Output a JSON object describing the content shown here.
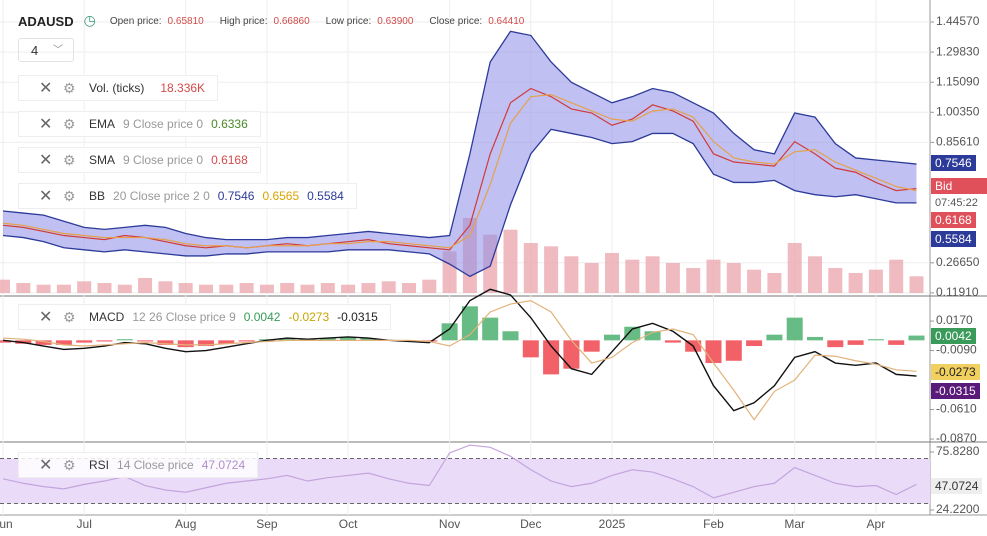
{
  "header": {
    "symbol": "ADAUSD",
    "interval": "4",
    "ohlc": [
      {
        "label": "Open price:",
        "value": "0.65810"
      },
      {
        "label": "High price:",
        "value": "0.66860"
      },
      {
        "label": "Low price:",
        "value": "0.63900"
      },
      {
        "label": "Close price:",
        "value": "0.64410"
      }
    ]
  },
  "indicators": {
    "vol": {
      "value": "18.336K"
    },
    "ema": {
      "params": "9 Close price 0",
      "value": "0.6336"
    },
    "sma": {
      "params": "9 Close price 0",
      "value": "0.6168"
    },
    "bb": {
      "params": "20 Close price 2 0",
      "values": [
        "0.7546",
        "0.6565",
        "0.5584"
      ]
    },
    "macd": {
      "params": "12 26 Close price 9",
      "values": [
        "0.0042",
        "-0.0273",
        "-0.0315"
      ]
    },
    "rsi": {
      "params": "14 Close price",
      "value": "47.0724"
    }
  },
  "price_tags": {
    "bid_label": "Bid",
    "countdown": "07:45:22"
  },
  "chart_data": [
    {
      "type": "line",
      "categories": [
        "Jun",
        null,
        null,
        null,
        "Jul",
        null,
        null,
        null,
        null,
        "Aug",
        null,
        null,
        null,
        "Sep",
        null,
        null,
        null,
        "Oct",
        null,
        null,
        null,
        null,
        "Nov",
        null,
        null,
        null,
        "Dec",
        null,
        null,
        null,
        "2025",
        null,
        null,
        null,
        null,
        "Feb",
        null,
        null,
        null,
        "Mar",
        null,
        null,
        null,
        "Apr",
        null,
        null
      ],
      "ylim": [
        0.1088,
        1.5534
      ],
      "yticks": [
        {
          "value": 1.4457,
          "label": "1.44570"
        },
        {
          "value": 1.2983,
          "label": "1.29830"
        },
        {
          "value": 1.1509,
          "label": "1.15090"
        },
        {
          "value": 1.0035,
          "label": "1.00350"
        },
        {
          "value": 0.8561,
          "label": "0.85610"
        },
        {
          "value": 0.2665,
          "label": "0.26650"
        },
        {
          "value": 0.1191,
          "label": "0.11910"
        }
      ],
      "grid": true,
      "band": {
        "name": "BB",
        "color": "#2c3a99",
        "fill": "#8d8ee8",
        "upper": [
          0.52,
          0.51,
          0.5,
          0.47,
          0.44,
          0.43,
          0.44,
          0.45,
          0.44,
          0.41,
          0.39,
          0.38,
          0.38,
          0.38,
          0.39,
          0.39,
          0.4,
          0.41,
          0.42,
          0.41,
          0.4,
          0.39,
          0.4,
          0.8,
          1.25,
          1.4,
          1.38,
          1.25,
          1.15,
          1.1,
          1.05,
          1.08,
          1.12,
          1.1,
          1.05,
          1.0,
          0.9,
          0.82,
          0.8,
          1.0,
          0.98,
          0.85,
          0.78,
          0.77,
          0.76,
          0.75
        ],
        "lower": [
          0.4,
          0.39,
          0.37,
          0.34,
          0.33,
          0.32,
          0.33,
          0.32,
          0.31,
          0.3,
          0.3,
          0.31,
          0.31,
          0.32,
          0.32,
          0.32,
          0.32,
          0.33,
          0.33,
          0.33,
          0.32,
          0.31,
          0.26,
          0.2,
          0.25,
          0.55,
          0.8,
          0.92,
          0.9,
          0.88,
          0.85,
          0.86,
          0.9,
          0.9,
          0.85,
          0.7,
          0.66,
          0.66,
          0.67,
          0.62,
          0.6,
          0.59,
          0.6,
          0.58,
          0.56,
          0.56
        ]
      },
      "volume": {
        "name": "Vol. (ticks)",
        "color": "#e9a3ab",
        "values": [
          8,
          6,
          5,
          5,
          7,
          6,
          5,
          9,
          7,
          6,
          5,
          5,
          6,
          5,
          6,
          5,
          6,
          5,
          6,
          7,
          6,
          8,
          25,
          45,
          35,
          38,
          30,
          28,
          22,
          18,
          24,
          20,
          22,
          18,
          15,
          20,
          18,
          14,
          12,
          30,
          22,
          15,
          12,
          14,
          20,
          10
        ]
      },
      "series": [
        {
          "name": "EMA",
          "color": "#d23a3a",
          "values": [
            0.45,
            0.44,
            0.42,
            0.4,
            0.39,
            0.38,
            0.4,
            0.39,
            0.37,
            0.35,
            0.34,
            0.35,
            0.34,
            0.35,
            0.36,
            0.35,
            0.36,
            0.37,
            0.38,
            0.36,
            0.35,
            0.34,
            0.33,
            0.45,
            0.8,
            1.05,
            1.12,
            1.08,
            1.02,
            1.0,
            0.94,
            0.97,
            1.04,
            1.01,
            0.96,
            0.8,
            0.76,
            0.75,
            0.74,
            0.86,
            0.8,
            0.73,
            0.71,
            0.66,
            0.62,
            0.63
          ]
        },
        {
          "name": "SMA",
          "color": "#e6a04a",
          "values": [
            0.46,
            0.45,
            0.43,
            0.41,
            0.4,
            0.39,
            0.39,
            0.39,
            0.38,
            0.36,
            0.35,
            0.35,
            0.34,
            0.35,
            0.35,
            0.35,
            0.36,
            0.36,
            0.37,
            0.37,
            0.36,
            0.35,
            0.34,
            0.4,
            0.65,
            0.95,
            1.08,
            1.09,
            1.05,
            1.01,
            0.97,
            0.96,
            1.01,
            1.02,
            0.98,
            0.86,
            0.78,
            0.76,
            0.75,
            0.81,
            0.82,
            0.76,
            0.72,
            0.68,
            0.64,
            0.62
          ]
        }
      ]
    },
    {
      "type": "macd",
      "ylim": [
        -0.0896,
        0.0382
      ],
      "yticks": [
        {
          "value": 0.017,
          "label": "0.0170"
        },
        {
          "value": -0.009,
          "label": "-0.0090"
        },
        {
          "value": -0.061,
          "label": "-0.0610"
        },
        {
          "value": -0.087,
          "label": "-0.0870"
        }
      ],
      "histogram": {
        "name": "MACD",
        "up_color": "#4caf6e",
        "down_color": "#f0444e",
        "values": [
          -0.002,
          -0.003,
          -0.004,
          -0.004,
          -0.002,
          -0.001,
          0.001,
          -0.001,
          -0.004,
          -0.006,
          -0.005,
          -0.003,
          -0.001,
          0.001,
          0.002,
          0.001,
          0.002,
          0.003,
          0.002,
          0.0,
          -0.001,
          -0.001,
          0.015,
          0.03,
          0.02,
          0.008,
          -0.015,
          -0.03,
          -0.025,
          -0.01,
          0.005,
          0.012,
          0.008,
          -0.002,
          -0.01,
          -0.02,
          -0.018,
          -0.005,
          0.005,
          0.02,
          0.003,
          -0.006,
          -0.004,
          0.001,
          -0.004,
          0.0042
        ]
      },
      "series": [
        {
          "color": "#111111",
          "values": [
            0.0,
            -0.002,
            -0.005,
            -0.008,
            -0.007,
            -0.005,
            -0.002,
            -0.003,
            -0.007,
            -0.01,
            -0.009,
            -0.006,
            -0.003,
            0.0,
            0.002,
            0.001,
            0.002,
            0.003,
            0.002,
            0.0,
            -0.001,
            -0.002,
            0.01,
            0.035,
            0.045,
            0.04,
            0.02,
            -0.005,
            -0.025,
            -0.03,
            -0.01,
            0.01,
            0.015,
            0.008,
            -0.005,
            -0.04,
            -0.062,
            -0.055,
            -0.04,
            -0.015,
            -0.01,
            -0.02,
            -0.022,
            -0.02,
            -0.03,
            -0.0315
          ]
        },
        {
          "color": "#e3b27a",
          "values": [
            0.002,
            0.001,
            -0.001,
            -0.004,
            -0.005,
            -0.004,
            -0.003,
            -0.002,
            -0.003,
            -0.004,
            -0.004,
            -0.003,
            -0.002,
            -0.001,
            0.0,
            0.0,
            0.0,
            0.0,
            0.0,
            0.0,
            0.0,
            -0.001,
            -0.005,
            0.005,
            0.025,
            0.032,
            0.035,
            0.025,
            0.0,
            -0.02,
            -0.015,
            -0.002,
            0.007,
            0.01,
            0.005,
            -0.02,
            -0.044,
            -0.07,
            -0.045,
            -0.035,
            -0.013,
            -0.014,
            -0.018,
            -0.021,
            -0.026,
            -0.0273
          ]
        }
      ]
    },
    {
      "type": "line",
      "ylim": [
        19.77,
        83.84
      ],
      "yticks": [
        {
          "value": 75.828,
          "label": "75.8280"
        },
        {
          "value": 24.22,
          "label": "24.2200"
        }
      ],
      "levels": [
        70,
        30
      ],
      "level_fill": "#eadcf8",
      "series": [
        {
          "name": "RSI",
          "color": "#c4a4dc",
          "values": [
            52,
            48,
            45,
            43,
            47,
            50,
            54,
            46,
            42,
            40,
            44,
            48,
            50,
            52,
            55,
            50,
            53,
            55,
            57,
            52,
            48,
            46,
            75,
            82,
            80,
            72,
            60,
            50,
            45,
            48,
            55,
            60,
            58,
            52,
            45,
            35,
            40,
            45,
            48,
            62,
            55,
            48,
            45,
            46,
            38,
            47.07
          ]
        }
      ]
    }
  ]
}
